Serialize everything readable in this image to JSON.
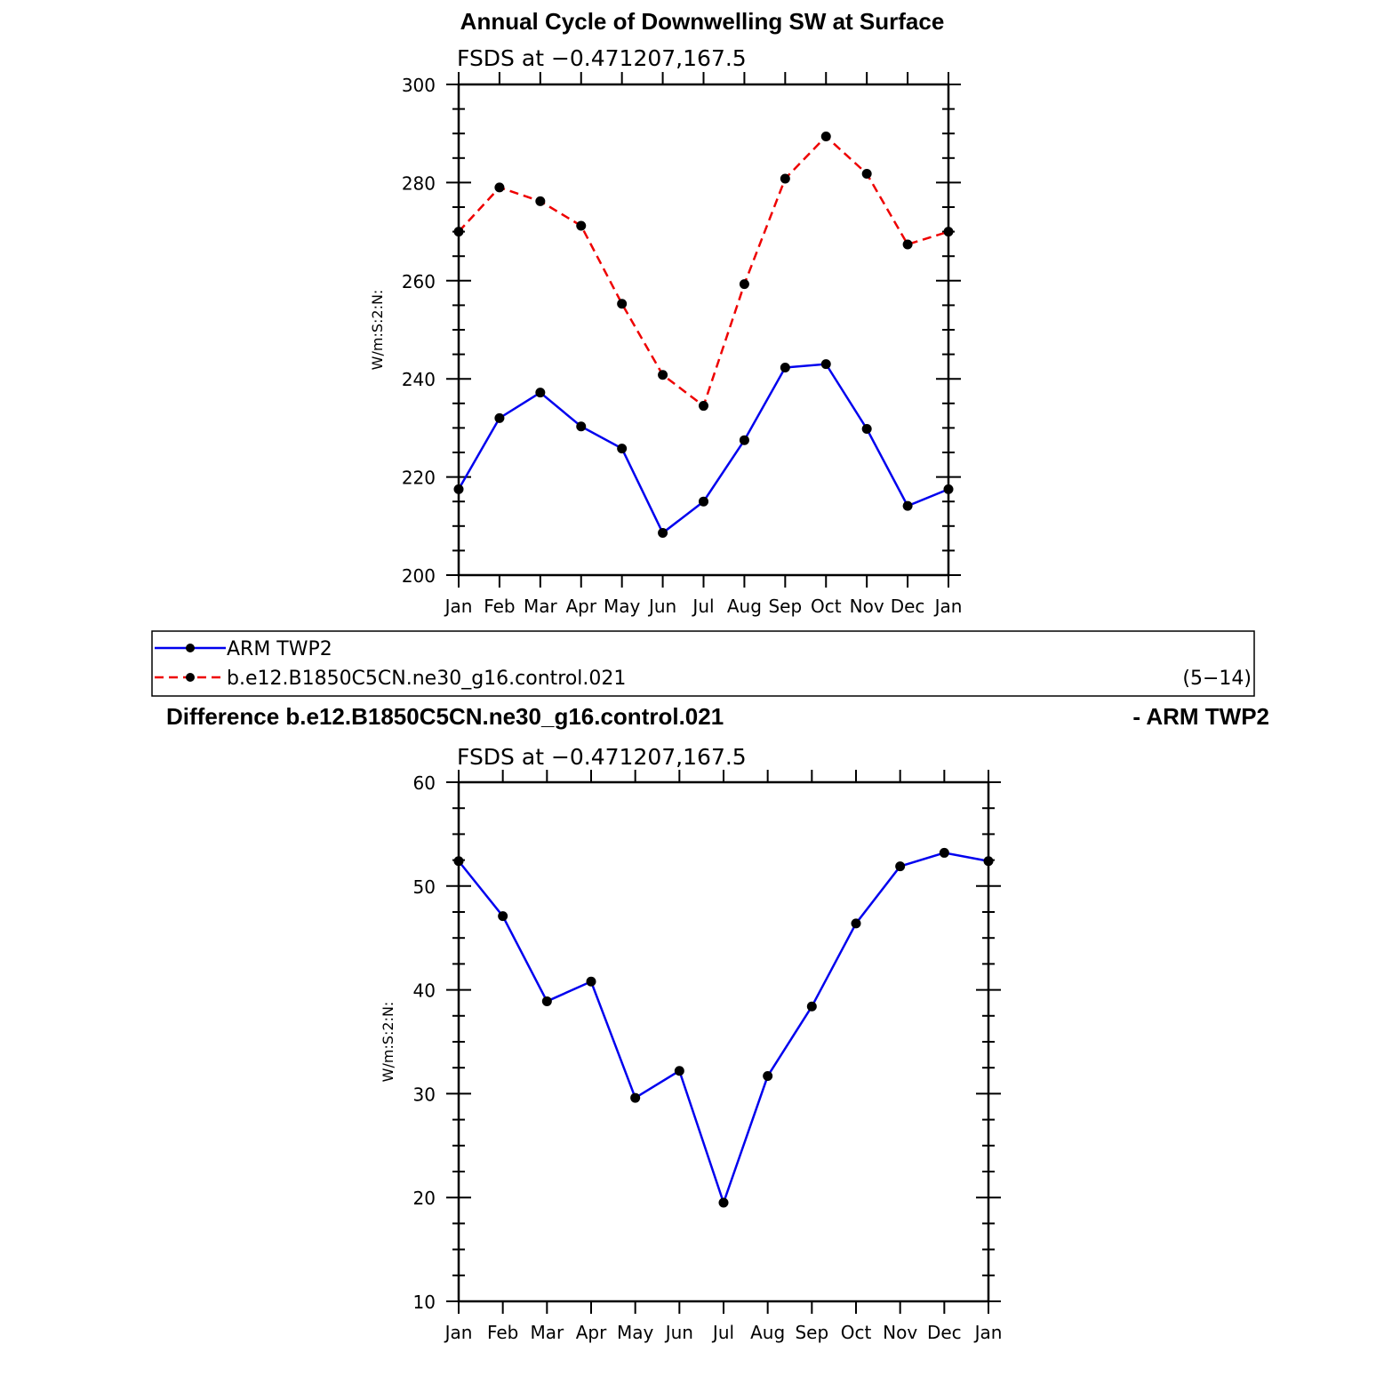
{
  "colors": {
    "obs": "#0000ee",
    "model": "#ee0000",
    "marker": "#000000"
  },
  "legend": {
    "items": [
      {
        "label": "ARM TWP2",
        "style": "solid",
        "color": "#0000ee"
      },
      {
        "label": "b.e12.B1850C5CN.ne30_g16.control.021",
        "style": "dashed",
        "color": "#ee0000"
      }
    ],
    "years": "(5−14)"
  },
  "chart_data": [
    {
      "type": "line",
      "title": "Annual Cycle of Downwelling SW at Surface",
      "subtitle": "FSDS at −0.471207,167.5",
      "xlabel": "",
      "ylabel": "W/m:S:2:N:",
      "categories": [
        "Jan",
        "Feb",
        "Mar",
        "Apr",
        "May",
        "Jun",
        "Jul",
        "Aug",
        "Sep",
        "Oct",
        "Nov",
        "Dec",
        "Jan"
      ],
      "ylim": [
        200,
        300
      ],
      "yticks": [
        200,
        220,
        240,
        260,
        280,
        300
      ],
      "series": [
        {
          "name": "ARM TWP2",
          "style": "solid",
          "values": [
            217.5,
            232,
            237.2,
            230.3,
            225.8,
            208.6,
            215,
            227.5,
            242.3,
            243,
            229.8,
            214.1,
            217.5
          ]
        },
        {
          "name": "b.e12.B1850C5CN.ne30_g16.control.021",
          "style": "dashed",
          "values": [
            270,
            279,
            276.2,
            271.2,
            255.3,
            240.8,
            234.5,
            259.3,
            280.8,
            289.4,
            281.8,
            267.4,
            270
          ]
        }
      ]
    },
    {
      "type": "line",
      "title_left": "Difference b.e12.B1850C5CN.ne30_g16.control.021",
      "title_right": "- ARM TWP2",
      "subtitle": "FSDS at −0.471207,167.5",
      "xlabel": "",
      "ylabel": "W/m:S:2:N:",
      "categories": [
        "Jan",
        "Feb",
        "Mar",
        "Apr",
        "May",
        "Jun",
        "Jul",
        "Aug",
        "Sep",
        "Oct",
        "Nov",
        "Dec",
        "Jan"
      ],
      "ylim": [
        10,
        60
      ],
      "yticks": [
        10,
        20,
        30,
        40,
        50,
        60
      ],
      "series": [
        {
          "style": "solid",
          "values": [
            52.4,
            47.1,
            38.9,
            40.8,
            29.6,
            32.2,
            19.5,
            31.7,
            38.4,
            46.4,
            51.9,
            53.2,
            52.4
          ]
        }
      ]
    }
  ]
}
